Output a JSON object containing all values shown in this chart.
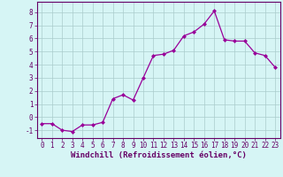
{
  "x": [
    0,
    1,
    2,
    3,
    4,
    5,
    6,
    7,
    8,
    9,
    10,
    11,
    12,
    13,
    14,
    15,
    16,
    17,
    18,
    19,
    20,
    21,
    22,
    23
  ],
  "y": [
    -0.5,
    -0.5,
    -1.0,
    -1.1,
    -0.6,
    -0.6,
    -0.4,
    1.4,
    1.7,
    1.3,
    3.0,
    4.7,
    4.8,
    5.1,
    6.2,
    6.5,
    7.1,
    8.1,
    5.9,
    5.8,
    5.8,
    4.9,
    4.7,
    3.8
  ],
  "line_color": "#990099",
  "marker": "D",
  "marker_size": 2.0,
  "bg_color": "#d6f5f5",
  "grid_color": "#aacccc",
  "xlabel": "Windchill (Refroidissement éolien,°C)",
  "xlabel_color": "#660066",
  "tick_color": "#660066",
  "spine_color": "#660066",
  "xlim": [
    -0.5,
    23.5
  ],
  "ylim": [
    -1.6,
    8.8
  ],
  "yticks": [
    -1,
    0,
    1,
    2,
    3,
    4,
    5,
    6,
    7,
    8
  ],
  "xticks": [
    0,
    1,
    2,
    3,
    4,
    5,
    6,
    7,
    8,
    9,
    10,
    11,
    12,
    13,
    14,
    15,
    16,
    17,
    18,
    19,
    20,
    21,
    22,
    23
  ],
  "tick_fontsize": 5.5,
  "xlabel_fontsize": 6.5
}
